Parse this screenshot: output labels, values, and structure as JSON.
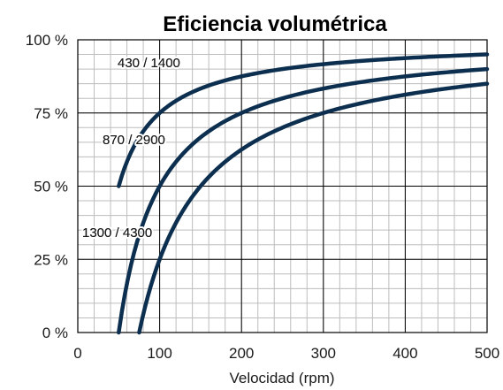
{
  "chart_data": {
    "type": "line",
    "title": "Eficiencia volumétrica",
    "xlabel": "Velocidad (rpm)",
    "ylabel": "",
    "xlim": [
      0,
      500
    ],
    "ylim": [
      0,
      100
    ],
    "x_ticks": [
      "0",
      "100",
      "200",
      "300",
      "400",
      "500"
    ],
    "y_ticks": [
      "0 %",
      "25 %",
      "50 %",
      "75 %",
      "100 %"
    ],
    "grid": true,
    "colors": {
      "line": "#0d2f4f",
      "title": "#0d2f4f",
      "major_grid": "#000000",
      "minor_grid": "#bdbdbd"
    },
    "series": [
      {
        "name": "430 / 1400",
        "x": [
          50,
          60,
          75,
          100,
          150,
          200,
          250,
          300,
          350,
          400,
          450,
          500
        ],
        "y": [
          50,
          58.3,
          66.7,
          75,
          83.3,
          87.5,
          90,
          91.7,
          92.9,
          93.8,
          94.4,
          95
        ]
      },
      {
        "name": "870 / 2900",
        "x": [
          50,
          60,
          75,
          100,
          150,
          200,
          250,
          300,
          350,
          400,
          450,
          500
        ],
        "y": [
          0,
          16.7,
          33.3,
          50,
          66.7,
          75,
          80,
          83.3,
          85.7,
          87.5,
          88.9,
          90
        ]
      },
      {
        "name": "1300 / 4300",
        "x": [
          75,
          85,
          100,
          125,
          150,
          200,
          250,
          300,
          350,
          400,
          450,
          500
        ],
        "y": [
          0,
          11.8,
          25,
          40,
          50,
          62.5,
          70,
          75,
          78.6,
          81.3,
          83.3,
          85
        ]
      }
    ]
  }
}
